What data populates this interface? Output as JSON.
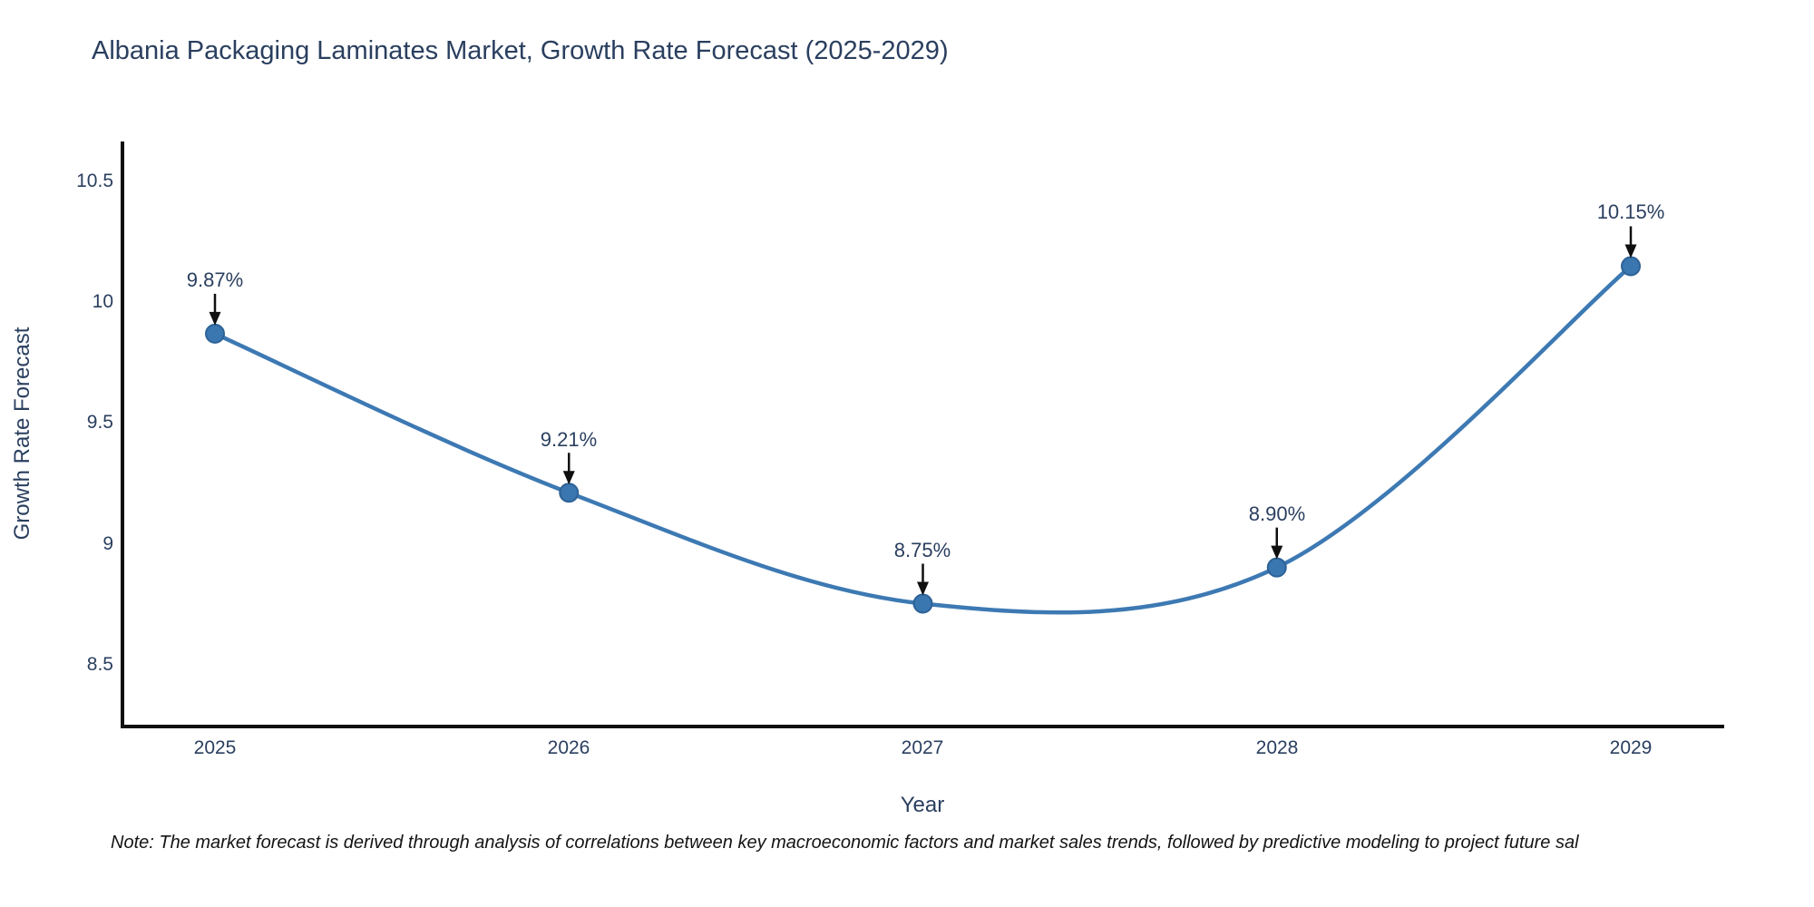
{
  "title": "Albania Packaging Laminates Market, Growth Rate Forecast (2025-2029)",
  "note": "Note: The market forecast is derived through analysis of correlations between key macroeconomic factors and market sales trends, followed by predictive modeling to project future sal",
  "chart_data": {
    "type": "line",
    "line_shape": "spline",
    "title": "Albania Packaging Laminates Market, Growth Rate Forecast (2025-2029)",
    "xlabel": "Year",
    "ylabel": "Growth Rate Forecast",
    "categories": [
      "2025",
      "2026",
      "2027",
      "2028",
      "2029"
    ],
    "values": [
      9.87,
      9.21,
      8.75,
      8.9,
      10.15
    ],
    "labels": [
      "9.87%",
      "9.21%",
      "8.75%",
      "8.90%",
      "10.15%"
    ],
    "yticks": [
      10.5,
      10,
      9.5,
      9,
      8.5
    ],
    "ytick_labels": [
      "10.5",
      "10",
      "9.5",
      "9",
      "8.5"
    ],
    "ylim": [
      8.24,
      10.66
    ],
    "grid": false,
    "legend": "none",
    "annotations_have_arrows": true,
    "colors": {
      "line": "#3d79b3",
      "marker": "#3a76b0",
      "marker_border": "#2e6296",
      "axis": "#0f0f0f",
      "arrow": "#0f0f0f",
      "text": "#2a3f5f",
      "background": "#ffffff"
    }
  }
}
